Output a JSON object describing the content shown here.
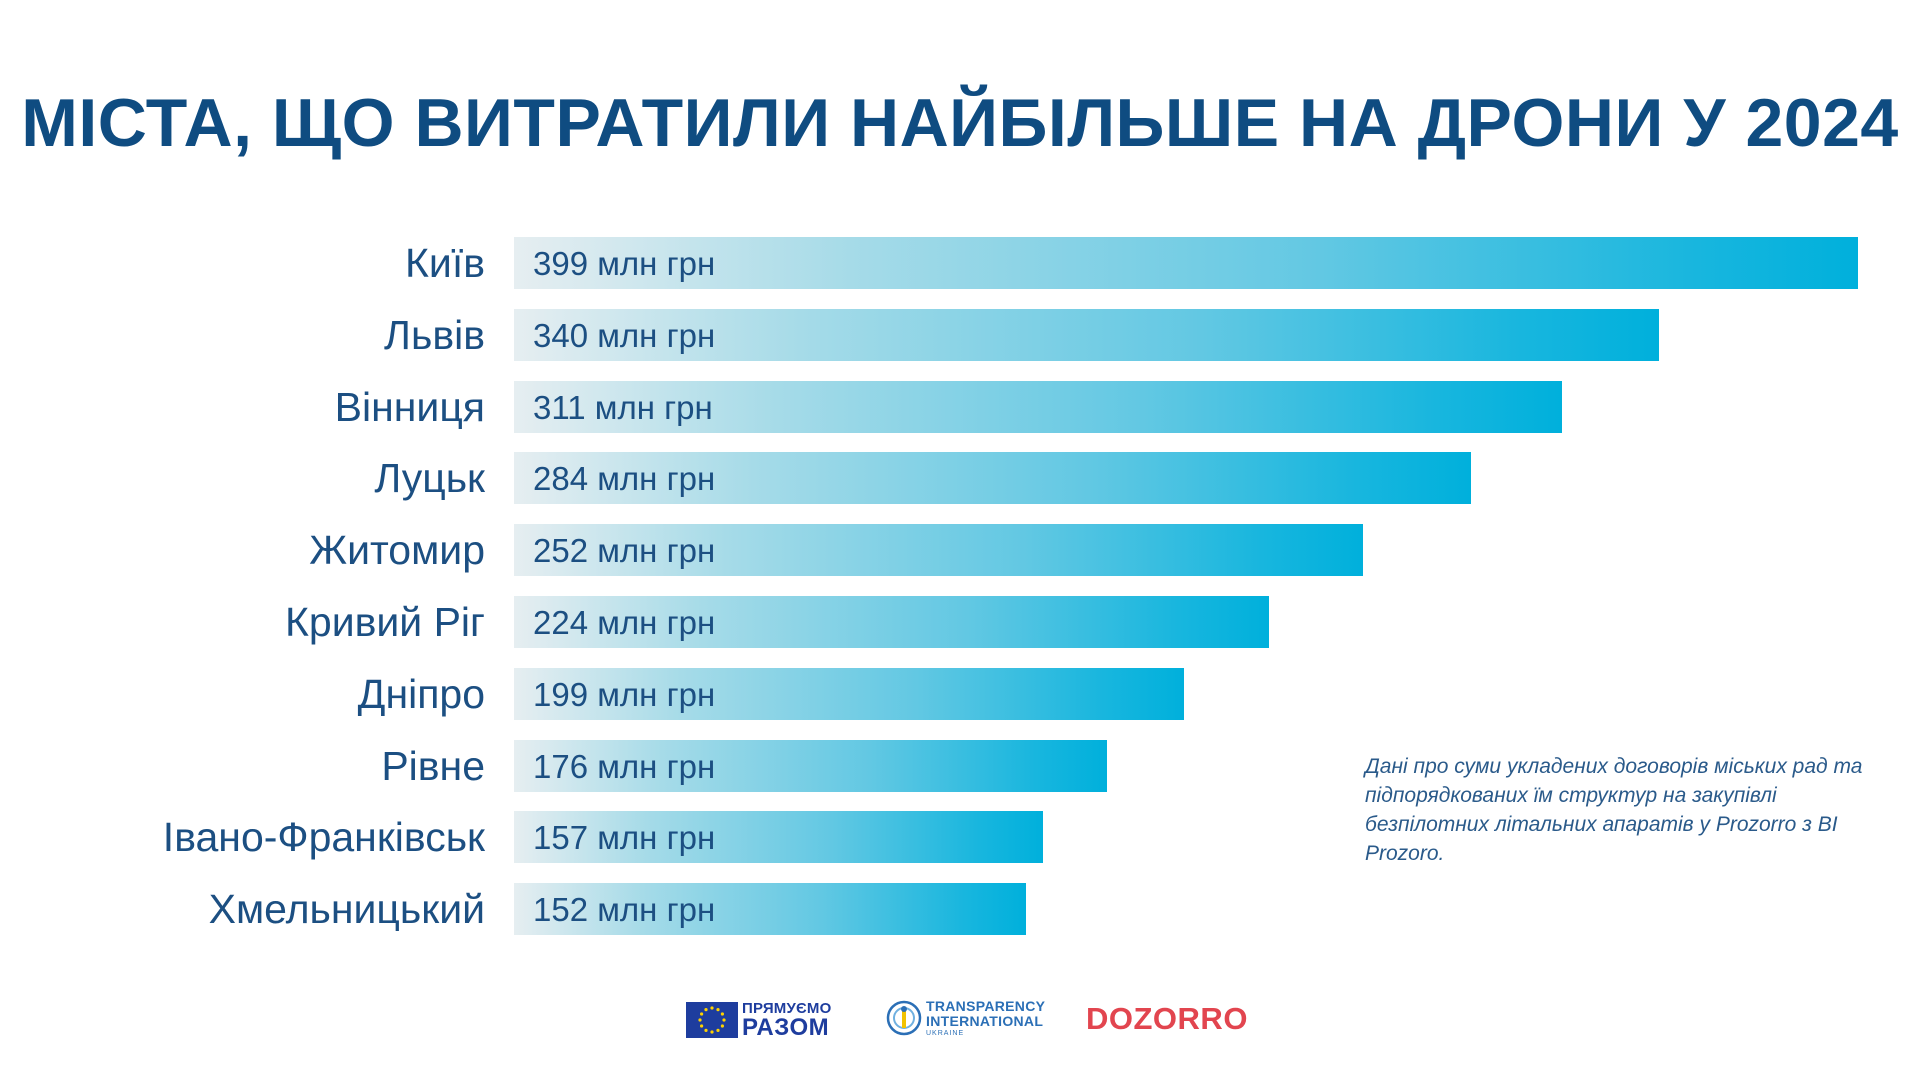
{
  "header": {
    "title": "МІСТА, ЩО ВИТРАТИЛИ НАЙБІЛЬШЕ НА ДРОНИ У 2024"
  },
  "chart_data": {
    "type": "bar",
    "orientation": "horizontal",
    "title": "МІСТА, ЩО ВИТРАТИЛИ НАЙБІЛЬШЕ НА ДРОНИ У 2024",
    "categories": [
      "Київ",
      "Львів",
      "Вінниця",
      "Луцьк",
      "Житомир",
      "Кривий Ріг",
      "Дніпро",
      "Рівне",
      "Івано-Франківськ",
      "Хмельницький"
    ],
    "values": [
      399,
      340,
      311,
      284,
      252,
      224,
      199,
      176,
      157,
      152
    ],
    "data_labels": [
      "399 млн грн",
      "340 млн грн",
      "311 млн грн",
      "284 млн грн",
      "252 млн грн",
      "224 млн грн",
      "199 млн грн",
      "176 млн грн",
      "157 млн грн",
      "152 млн грн"
    ],
    "xlim": [
      0,
      399
    ],
    "grid": false,
    "legend": "none",
    "colors": {
      "bar_start": "#e6eef1",
      "bar_end": "#00b0dc",
      "text": "#1c4f82",
      "title": "#0f4c81"
    }
  },
  "note": {
    "text": "Дані про суми укладених договорів міських рад та підпорядкованих їм структур на закупівлі безпілотних літальних апаратів у Prozorro з BI Prozoro."
  },
  "footer": {
    "logo_eu": {
      "line1": "ПРЯМУЄМО",
      "line2": "РАЗОМ",
      "icon": "eu-flag-icon"
    },
    "logo_ti": {
      "line1": "TRANSPARENCY",
      "line2": "INTERNATIONAL",
      "line3": "UKRAINE",
      "icon": "ti-logo-icon"
    },
    "logo_dz": {
      "text": "DOZORRO"
    }
  }
}
